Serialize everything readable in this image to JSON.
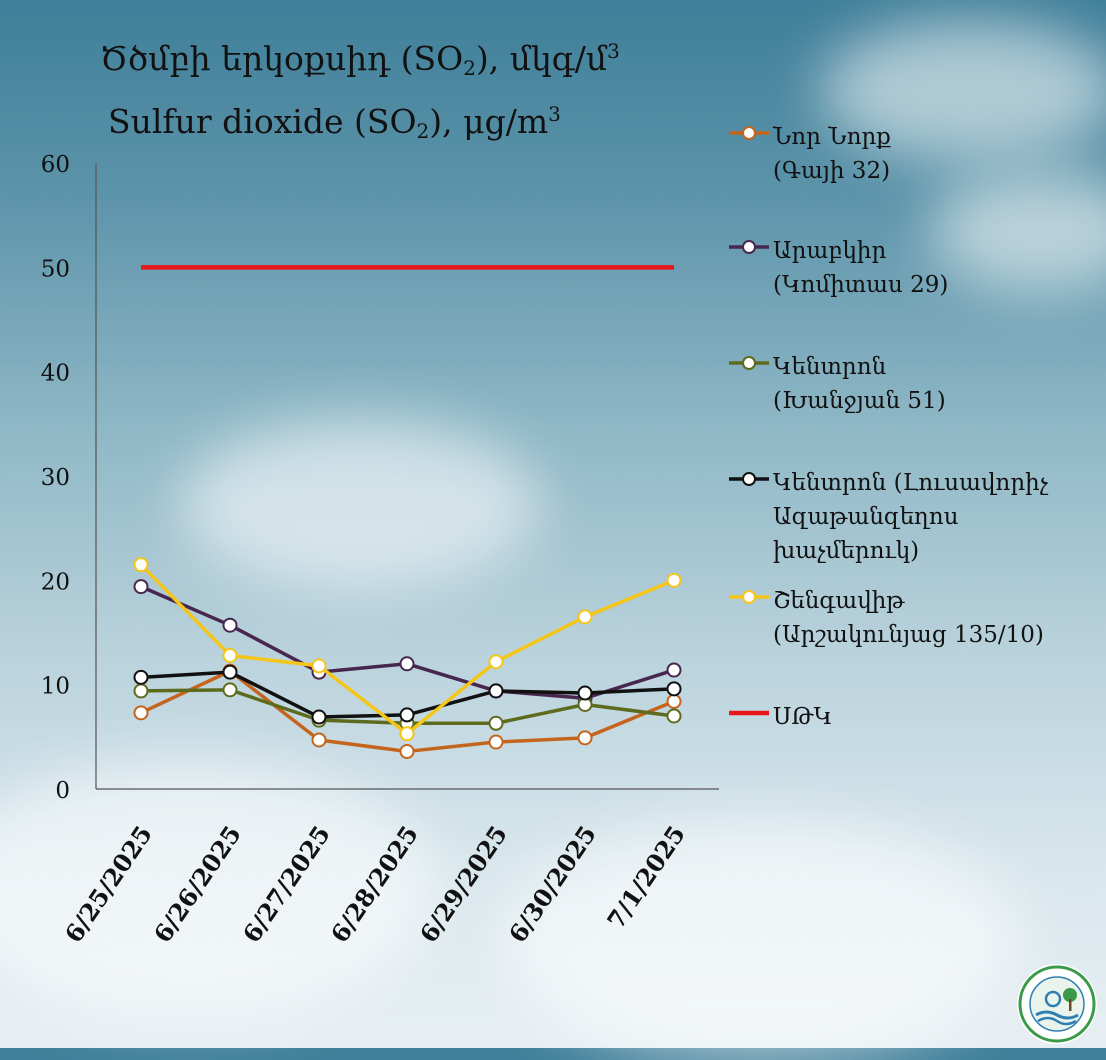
{
  "title": {
    "line1_main": "Ծծմբի երկօքսիդ (SO",
    "line1_sub": "2",
    "line1_tail": "), մկգ/մ",
    "line1_sup": "3",
    "line2_main": "Sulfur dioxide (SO",
    "line2_sub": "2",
    "line2_tail": "), μg/m",
    "line2_sup": "3"
  },
  "logo": {
    "icon": "environmental-monitoring-center-logo",
    "color": "#2e8b57"
  },
  "chart_data": {
    "type": "line",
    "ylim": [
      0,
      60
    ],
    "yticks": [
      "0",
      "10",
      "20",
      "30",
      "40",
      "50",
      "60"
    ],
    "grid": false,
    "legend_position": "right",
    "categories": [
      "6/25/2025",
      "6/26/2025",
      "6/27/2025",
      "6/28/2025",
      "6/29/2025",
      "6/30/2025",
      "7/1/2025"
    ],
    "series": [
      {
        "name": "Նոր Նորք\n(Գայի 32)",
        "color": "#c5651d",
        "marker": true,
        "values": [
          7.3,
          11.3,
          4.7,
          3.6,
          4.5,
          4.9,
          8.4
        ]
      },
      {
        "name": "Արաբկիր\n(Կոմիտաս 29)",
        "color": "#47264f",
        "marker": true,
        "values": [
          19.4,
          15.7,
          11.2,
          12,
          9.4,
          8.7,
          11.4
        ]
      },
      {
        "name": "Կենտրոն\n(Խանջյան 51)",
        "color": "#5e6b1e",
        "marker": true,
        "values": [
          9.4,
          9.5,
          6.6,
          6.3,
          6.3,
          8.1,
          7
        ]
      },
      {
        "name": "Կենտրոն (Լուսավորիչ\nԱզաթանզեղոս\nխաչմերուկ)",
        "color": "#111111",
        "marker": true,
        "values": [
          10.7,
          11.2,
          6.9,
          7.1,
          9.4,
          9.2,
          9.6
        ]
      },
      {
        "name": "Շենգավիթ\n(Արշակունյաց 135/10)",
        "color": "#f5c518",
        "marker": true,
        "values": [
          21.5,
          12.8,
          11.8,
          5.3,
          12.2,
          16.5,
          20
        ]
      },
      {
        "name": "ՍԹԿ",
        "color": "#e8161b",
        "marker": false,
        "values": [
          50,
          50,
          50,
          50,
          50,
          50,
          50
        ]
      }
    ]
  }
}
